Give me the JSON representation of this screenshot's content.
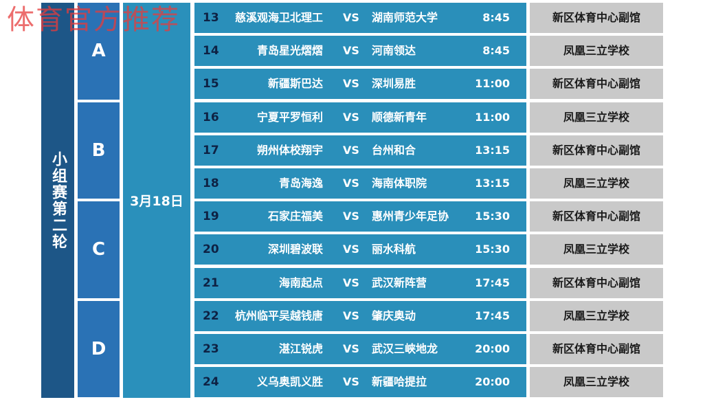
{
  "watermark": "体育官方推荐",
  "stage": "小组赛第二轮",
  "date": "3月18日",
  "groups": [
    "A",
    "B",
    "C",
    "D"
  ],
  "vs_label": "VS",
  "matches": [
    {
      "no": "13",
      "home": "慈溪观海卫北理工",
      "away": "湖南师范大学",
      "time": "8:45",
      "venue": "新区体育中心副馆"
    },
    {
      "no": "14",
      "home": "青岛星光熠熠",
      "away": "河南领达",
      "time": "8:45",
      "venue": "凤凰三立学校"
    },
    {
      "no": "15",
      "home": "新疆斯巴达",
      "away": "深圳易胜",
      "time": "11:00",
      "venue": "新区体育中心副馆"
    },
    {
      "no": "16",
      "home": "宁夏平罗恒利",
      "away": "顺德新青年",
      "time": "11:00",
      "venue": "凤凰三立学校"
    },
    {
      "no": "17",
      "home": "朔州体校翔宇",
      "away": "台州和合",
      "time": "13:15",
      "venue": "新区体育中心副馆"
    },
    {
      "no": "18",
      "home": "青岛海逸",
      "away": "海南体职院",
      "time": "13:15",
      "venue": "凤凰三立学校"
    },
    {
      "no": "19",
      "home": "石家庄福美",
      "away": "惠州青少年足协",
      "time": "15:30",
      "venue": "新区体育中心副馆"
    },
    {
      "no": "20",
      "home": "深圳碧波联",
      "away": "丽水科航",
      "time": "15:30",
      "venue": "凤凰三立学校"
    },
    {
      "no": "21",
      "home": "海南起点",
      "away": "武汉新阵营",
      "time": "17:45",
      "venue": "新区体育中心副馆"
    },
    {
      "no": "22",
      "home": "杭州临平吴越钱唐",
      "away": "肇庆奥动",
      "time": "17:45",
      "venue": "凤凰三立学校"
    },
    {
      "no": "23",
      "home": "湛江锐虎",
      "away": "武汉三峡地龙",
      "time": "20:00",
      "venue": "新区体育中心副馆"
    },
    {
      "no": "24",
      "home": "义乌奥凯义胜",
      "away": "新疆哈提拉",
      "time": "20:00",
      "venue": "凤凰三立学校"
    }
  ],
  "colors": {
    "stage": "#1d5687",
    "group": "#2a72b5",
    "row": "#2a8fba",
    "venue": "#c9c9c9",
    "number": "#0e2244",
    "watermark": "#e63c3c"
  }
}
